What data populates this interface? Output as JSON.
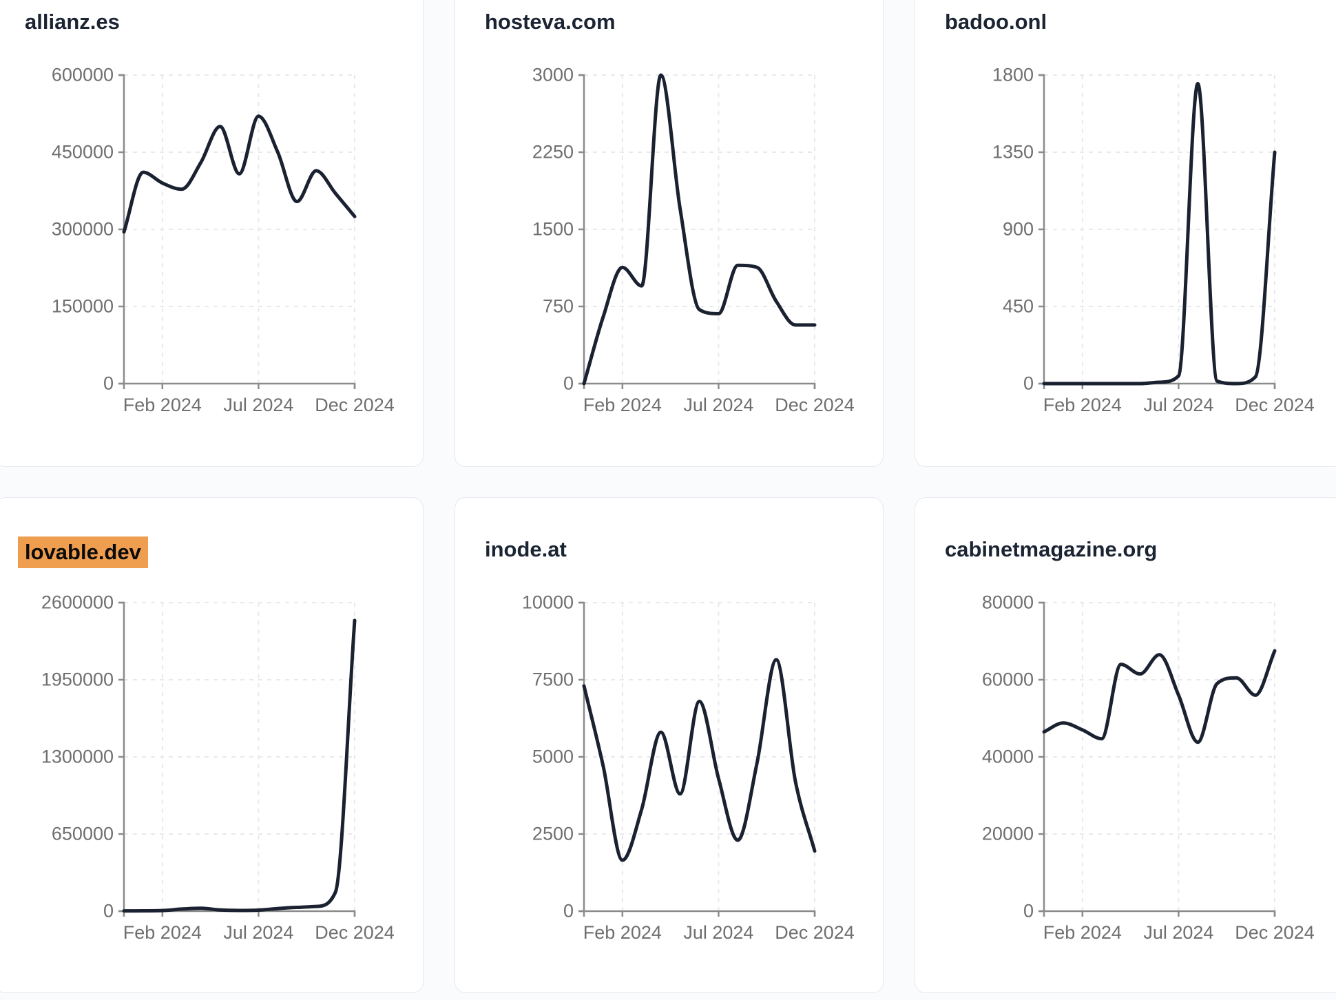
{
  "colors": {
    "page_background": "#fafbfc",
    "card_background": "#ffffff",
    "card_border": "#e6e9ef",
    "line": "#1a2130",
    "title": "#1b2433",
    "axis": "#8b8b8b",
    "tick_label": "#6f6f6f",
    "gridline": "#e7e9ed",
    "highlight_background": "#ef9e4f",
    "highlight_text": "#0a0a0a"
  },
  "chart_data": [
    {
      "type": "line",
      "title": "allianz.es",
      "highlighted": false,
      "n_points": 13,
      "values": [
        295000,
        411000,
        390000,
        378000,
        430000,
        500000,
        408000,
        520000,
        450000,
        354000,
        414000,
        370000,
        325000
      ],
      "ylim": [
        0,
        600000
      ],
      "yticks": [
        0,
        150000,
        300000,
        450000,
        600000
      ],
      "x_tick_labels": [
        "Feb 2024",
        "Jul 2024",
        "Dec 2024"
      ],
      "x_tick_positions": [
        2,
        7,
        12
      ],
      "grid": true,
      "legend": false
    },
    {
      "type": "line",
      "title": "hosteva.com",
      "highlighted": false,
      "n_points": 13,
      "values": [
        0,
        650,
        1130,
        950,
        3000,
        1700,
        720,
        680,
        1150,
        1130,
        800,
        570,
        570
      ],
      "ylim": [
        0,
        3000
      ],
      "yticks": [
        0,
        750,
        1500,
        2250,
        3000
      ],
      "x_tick_labels": [
        "Feb 2024",
        "Jul 2024",
        "Dec 2024"
      ],
      "x_tick_positions": [
        2,
        7,
        12
      ],
      "grid": true,
      "legend": false
    },
    {
      "type": "line",
      "title": "badoo.onl",
      "highlighted": false,
      "n_points": 13,
      "values": [
        0,
        0,
        0,
        0,
        0,
        0,
        8,
        45,
        1750,
        15,
        0,
        40,
        1350
      ],
      "ylim": [
        0,
        1800
      ],
      "yticks": [
        0,
        450,
        900,
        1350,
        1800
      ],
      "x_tick_labels": [
        "Feb 2024",
        "Jul 2024",
        "Dec 2024"
      ],
      "x_tick_positions": [
        2,
        7,
        12
      ],
      "grid": true,
      "legend": false
    },
    {
      "type": "line",
      "title": "lovable.dev",
      "highlighted": true,
      "n_points": 13,
      "values": [
        2000,
        3000,
        5000,
        18000,
        25000,
        10000,
        6000,
        9000,
        22000,
        32000,
        40000,
        160000,
        2450000
      ],
      "ylim": [
        0,
        2600000
      ],
      "yticks": [
        0,
        650000,
        1300000,
        1950000,
        2600000
      ],
      "x_tick_labels": [
        "Feb 2024",
        "Jul 2024",
        "Dec 2024"
      ],
      "x_tick_positions": [
        2,
        7,
        12
      ],
      "grid": true,
      "legend": false
    },
    {
      "type": "line",
      "title": "inode.at",
      "highlighted": false,
      "n_points": 13,
      "values": [
        7300,
        4700,
        1650,
        3300,
        5800,
        3800,
        6800,
        4300,
        2300,
        4800,
        8150,
        4200,
        1950
      ],
      "ylim": [
        0,
        10000
      ],
      "yticks": [
        0,
        2500,
        5000,
        7500,
        10000
      ],
      "x_tick_labels": [
        "Feb 2024",
        "Jul 2024",
        "Dec 2024"
      ],
      "x_tick_positions": [
        2,
        7,
        12
      ],
      "grid": true,
      "legend": false
    },
    {
      "type": "line",
      "title": "cabinetmagazine.org",
      "highlighted": false,
      "n_points": 13,
      "values": [
        46500,
        48800,
        47000,
        44700,
        64000,
        61500,
        66500,
        56000,
        43800,
        59000,
        60500,
        56000,
        67500
      ],
      "ylim": [
        0,
        80000
      ],
      "yticks": [
        0,
        20000,
        40000,
        60000,
        80000
      ],
      "x_tick_labels": [
        "Feb 2024",
        "Jul 2024",
        "Dec 2024"
      ],
      "x_tick_positions": [
        2,
        7,
        12
      ],
      "grid": true,
      "legend": false
    }
  ]
}
